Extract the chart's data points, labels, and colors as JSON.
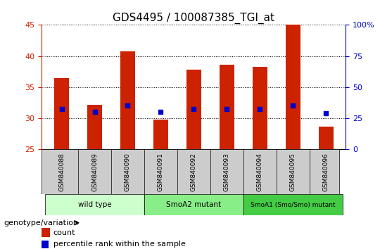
{
  "title": "GDS4495 / 100087385_TGI_at",
  "samples": [
    "GSM840088",
    "GSM840089",
    "GSM840090",
    "GSM840091",
    "GSM840092",
    "GSM840093",
    "GSM840094",
    "GSM840095",
    "GSM840096"
  ],
  "count_values": [
    36.5,
    32.2,
    40.8,
    29.8,
    37.8,
    38.6,
    38.3,
    45.0,
    28.7
  ],
  "percentile_values": [
    31.5,
    31.0,
    32.0,
    31.0,
    31.5,
    31.5,
    31.5,
    32.0,
    30.8
  ],
  "ylim_left": [
    25,
    45
  ],
  "ylim_right": [
    0,
    100
  ],
  "yticks_left": [
    25,
    30,
    35,
    40,
    45
  ],
  "yticks_right": [
    0,
    25,
    50,
    75,
    100
  ],
  "bar_color": "#cc2200",
  "dot_color": "#0000cc",
  "bar_bottom": 25,
  "groups": [
    {
      "label": "wild type",
      "start": 0,
      "end": 3,
      "color": "#ccffcc"
    },
    {
      "label": "SmoA2 mutant",
      "start": 3,
      "end": 6,
      "color": "#88ee88"
    },
    {
      "label": "SmoA1 (Smo/Smo) mutant",
      "start": 6,
      "end": 9,
      "color": "#44cc44"
    }
  ],
  "xlabel_label": "genotype/variation",
  "legend_count_label": "count",
  "legend_pct_label": "percentile rank within the sample",
  "title_fontsize": 11,
  "tick_fontsize": 8,
  "sample_bg": "#cccccc",
  "plot_bg": "#ffffff"
}
